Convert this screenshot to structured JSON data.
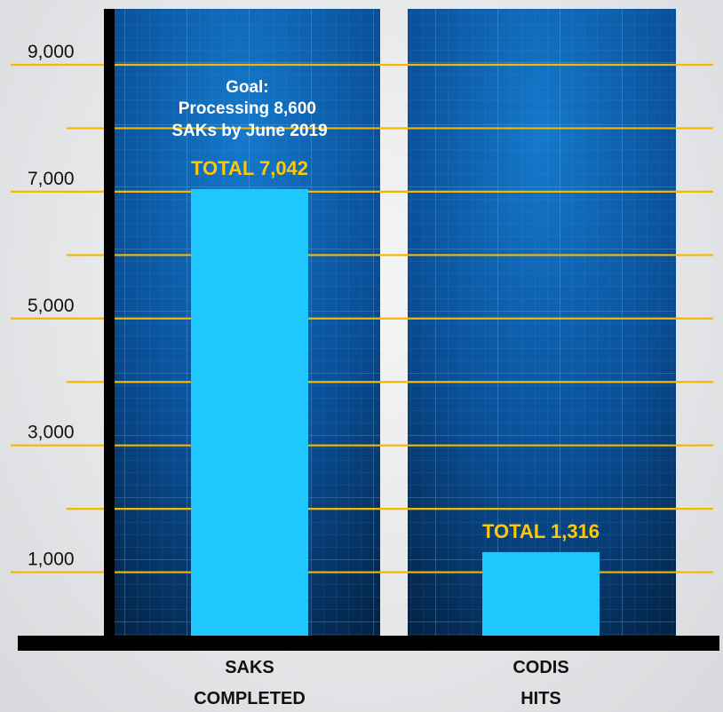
{
  "chart_data": {
    "type": "bar",
    "categories": [
      [
        "SAKS",
        "COMPLETED"
      ],
      [
        "CODIS",
        "HITS"
      ]
    ],
    "values": [
      7042,
      1316
    ],
    "data_labels": [
      "TOTAL 7,042",
      "TOTAL 1,316"
    ],
    "annotation": [
      "Goal:",
      "Processing 8,600",
      "SAKs by June 2019"
    ],
    "y_ticks": [
      {
        "value": 1000,
        "label": "1,000"
      },
      {
        "value": 3000,
        "label": "3,000"
      },
      {
        "value": 5000,
        "label": "5,000"
      },
      {
        "value": 7000,
        "label": "7,000"
      },
      {
        "value": 9000,
        "label": "9,000"
      }
    ],
    "gridlines": [
      1000,
      2000,
      3000,
      4000,
      5000,
      6000,
      7000,
      8000,
      9000
    ],
    "ylim": [
      0,
      9000
    ],
    "grid": true,
    "colors": {
      "bar": "#1ec8ff",
      "gridline": "#f3b800",
      "label": "#ffc800",
      "panel_dark": "#052a5a",
      "panel_light": "#0d6fbf"
    }
  }
}
